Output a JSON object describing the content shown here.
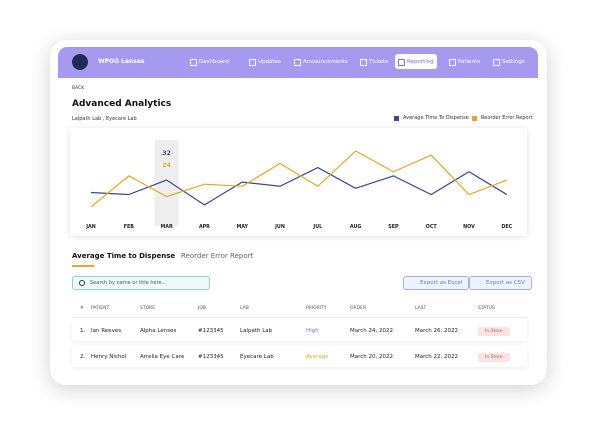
{
  "header": {
    "brand": "WPOG Lenses",
    "nav": [
      "Dashboard",
      "Updates",
      "Announcements",
      "Tickets",
      "Reporting",
      "Patients",
      "Settings"
    ],
    "active": "Reporting"
  },
  "back": "BACK",
  "title": "Advanced Analytics",
  "subtitle": "Lalpath Lab , Eyecare Lab",
  "chart_data": {
    "type": "line",
    "categories": [
      "JAN",
      "FEB",
      "MAR",
      "APR",
      "MAY",
      "JUN",
      "JUL",
      "AUG",
      "SEP",
      "OCT",
      "NOV",
      "DEC"
    ],
    "series": [
      {
        "name": "Average Time To Dispense",
        "color": "#3b4a8c",
        "values": [
          26,
          25,
          32,
          20,
          31,
          29,
          38,
          28,
          34,
          25,
          36,
          25
        ]
      },
      {
        "name": "Reorder Error Report",
        "color": "#e3a82b",
        "values": [
          19,
          34,
          24,
          30,
          29,
          40,
          29,
          46,
          36,
          44,
          25,
          32
        ]
      }
    ],
    "highlighted_category": "MAR",
    "legend": "top-right"
  },
  "tabs": [
    "Average Time to Dispense",
    "Reorder Error Report"
  ],
  "search_placeholder": "Search by name or title here...",
  "buttons": [
    "Export as Excel",
    "Export as CSV"
  ],
  "table": {
    "columns": [
      "#",
      "PATIENT",
      "STORE",
      "JOB",
      "LAB",
      "PRIORITY",
      "ORDER",
      "LAST",
      "STATUS"
    ],
    "rows": [
      [
        "1.",
        "Ian Reeves",
        "Alpha Lenses",
        "#123345",
        "Lalpath Lab",
        "High",
        "March 24, 2022",
        "March 26, 2022",
        "In Store"
      ],
      [
        "2.",
        "Henry Nichol",
        "Arrelia Eye Care",
        "#123345",
        "Eyecare Lab",
        "Average",
        "March 20, 2022",
        "March 22, 2022",
        "In Store"
      ]
    ]
  }
}
